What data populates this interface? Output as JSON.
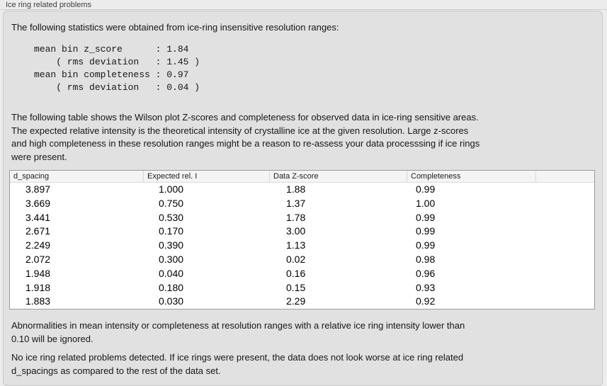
{
  "section": {
    "title": "Ice ring related problems"
  },
  "intro": {
    "text": "The following statistics were obtained from ice-ring insensitive resolution ranges:"
  },
  "stats": {
    "text": "mean bin z_score      : 1.84\n    ( rms deviation   : 1.45 )\nmean bin completeness : 0.97\n    ( rms deviation   : 0.04 )",
    "values": {
      "mean_bin_z_score": "1.84",
      "z_score_rms_deviation": "1.45",
      "mean_bin_completeness": "0.97",
      "completeness_rms_deviation": "0.04"
    }
  },
  "description": {
    "text": "The following table shows the Wilson plot Z-scores and completeness for observed data in ice-ring sensitive areas.\nThe expected relative intensity is the theoretical intensity of crystalline ice at the given resolution. Large z-scores\nand high completeness in these resolution ranges might be a reason to re-assess your data processsing if ice rings\nwere present."
  },
  "table": {
    "columns": [
      "d_spacing",
      "Expected rel. I",
      "Data Z-score",
      "Completeness",
      ""
    ],
    "rows": [
      [
        "3.897",
        "1.000",
        "1.88",
        "0.99"
      ],
      [
        "3.669",
        "0.750",
        "1.37",
        "1.00"
      ],
      [
        "3.441",
        "0.530",
        "1.78",
        "0.99"
      ],
      [
        "2.671",
        "0.170",
        "3.00",
        "0.99"
      ],
      [
        "2.249",
        "0.390",
        "1.13",
        "0.99"
      ],
      [
        "2.072",
        "0.300",
        "0.02",
        "0.98"
      ],
      [
        "1.948",
        "0.040",
        "0.16",
        "0.96"
      ],
      [
        "1.918",
        "0.180",
        "0.15",
        "0.93"
      ],
      [
        "1.883",
        "0.030",
        "2.29",
        "0.92"
      ]
    ]
  },
  "notes": {
    "ignore_threshold": "Abnormalities in mean intensity or completeness at resolution ranges with a relative ice ring intensity lower than\n0.10 will be ignored.",
    "conclusion": "No ice ring related problems detected. If ice rings were present, the data does not look worse at ice ring related\nd_spacings as compared to the rest of the data set."
  },
  "colors": {
    "page_background": "#ececec",
    "panel_background": "#e1e1e1",
    "table_background": "#ffffff",
    "table_border": "#9a9a9a",
    "header_background": "#f4f4f4"
  }
}
